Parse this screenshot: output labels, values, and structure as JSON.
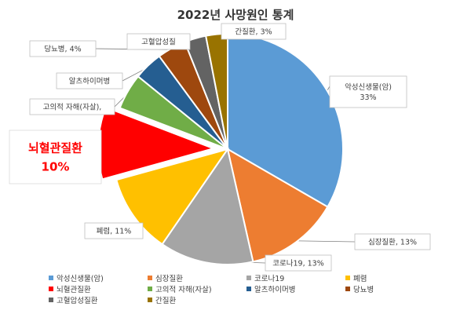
{
  "chart_data": {
    "type": "pie",
    "title": "2022년 사망원인 통계",
    "slices": [
      {
        "name": "악성신생물(암)",
        "value": 33,
        "color": "#5b9bd5",
        "label_lines": [
          "악성신생물(암)",
          "33%"
        ]
      },
      {
        "name": "심장질환",
        "value": 13,
        "color": "#ed7d31",
        "label_lines": [
          "심장질환, 13%"
        ]
      },
      {
        "name": "코로나19",
        "value": 13,
        "color": "#a5a5a5",
        "label_lines": [
          "코로나19, 13%"
        ]
      },
      {
        "name": "폐렴",
        "value": 11,
        "color": "#ffc000",
        "label_lines": [
          "폐렴, 11%"
        ]
      },
      {
        "name": "뇌혈관질환",
        "value": 10,
        "color": "#ff0000",
        "label_lines": [
          "뇌혈관질환",
          "10%"
        ],
        "exploded": true,
        "highlight": true
      },
      {
        "name": "고의적 자해(자살)",
        "value": 5,
        "color": "#70ad47",
        "label_lines": [
          "고의적 자해(자살),"
        ]
      },
      {
        "name": "알츠하이머병",
        "value": 4,
        "color": "#255e91",
        "label_lines": [
          "알츠하이머병"
        ]
      },
      {
        "name": "당뇨병",
        "value": 4,
        "color": "#9e480e",
        "label_lines": [
          "당뇨병, 4%"
        ]
      },
      {
        "name": "고혈압성질환",
        "value": 3,
        "color": "#636363",
        "label_lines": [
          "고혈압성질"
        ]
      },
      {
        "name": "간질환",
        "value": 3,
        "color": "#997300",
        "label_lines": [
          "간질환, 3%"
        ]
      }
    ],
    "legend": [
      "악성신생물(암)",
      "심장질환",
      "코로나19",
      "폐렴",
      "뇌혈관질환",
      "고의적 자해(자살)",
      "알츠하이머병",
      "당뇨병",
      "고혈압성질환",
      "간질환"
    ],
    "legend_position": "bottom"
  }
}
